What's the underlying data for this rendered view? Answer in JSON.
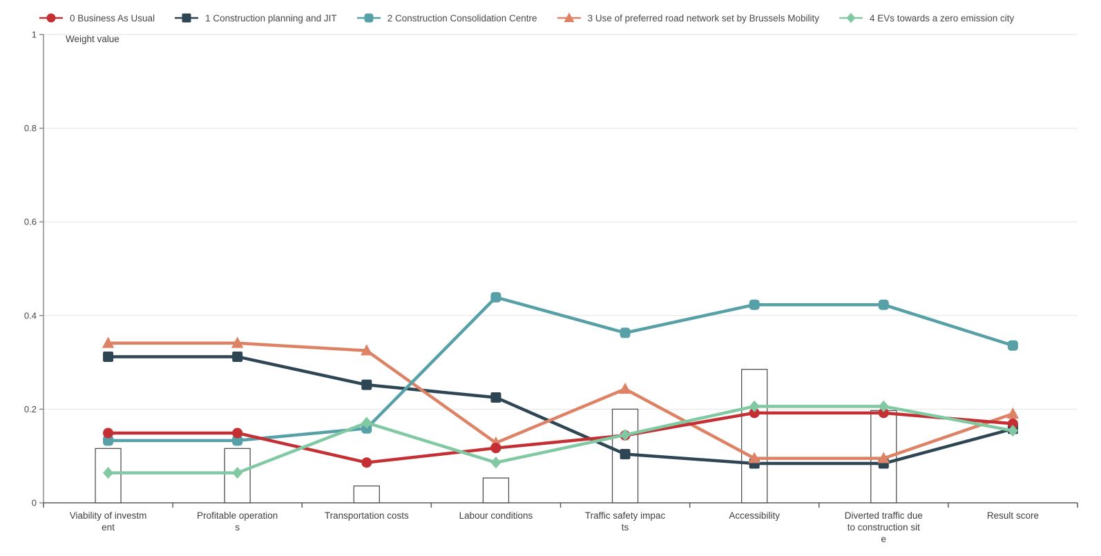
{
  "chart_data": {
    "type": "line",
    "title": "",
    "ylabel": "Weight value",
    "xlabel": "",
    "ylim": [
      0,
      1
    ],
    "yticks": [
      0,
      0.2,
      0.4,
      0.6,
      0.8,
      1
    ],
    "ytick_labels": [
      "0",
      "0.2",
      "0.4",
      "0.6",
      "0.8",
      "1"
    ],
    "grid": true,
    "legend_position": "top-left",
    "categories": [
      "Viability of investment",
      "Profitable operations",
      "Transportation costs",
      "Labour conditions",
      "Traffic safety impacts",
      "Accessibility",
      "Diverted traffic due to construction site",
      "Result score"
    ],
    "category_label_lines": [
      [
        "Viability of investm",
        "ent"
      ],
      [
        "Profitable operation",
        "s"
      ],
      [
        "Transportation costs"
      ],
      [
        "Labour conditions"
      ],
      [
        "Traffic safety impac",
        "ts"
      ],
      [
        "Accessibility"
      ],
      [
        "Diverted traffic due",
        "to construction sit",
        "e"
      ],
      [
        "Result score"
      ]
    ],
    "series": [
      {
        "name": "0 Business As Usual",
        "color": "#c42f33",
        "marker": "circle",
        "values": [
          0.149,
          0.149,
          0.086,
          0.117,
          0.144,
          0.192,
          0.192,
          0.169
        ]
      },
      {
        "name": "1 Construction planning and JIT",
        "color": "#2e4553",
        "marker": "square",
        "values": [
          0.312,
          0.312,
          0.252,
          0.225,
          0.104,
          0.084,
          0.084,
          0.158
        ]
      },
      {
        "name": "2 Construction Consolidation Centre",
        "color": "#57a0a7",
        "marker": "rounded-square",
        "values": [
          0.133,
          0.133,
          0.159,
          0.439,
          0.363,
          0.423,
          0.423,
          0.336
        ]
      },
      {
        "name": "3 Use of preferred road network set by Brussels Mobility",
        "color": "#de8265",
        "marker": "triangle",
        "values": [
          0.341,
          0.341,
          0.325,
          0.128,
          0.243,
          0.095,
          0.095,
          0.19
        ]
      },
      {
        "name": "4 EVs towards a zero emission city",
        "color": "#80c9a3",
        "marker": "diamond",
        "values": [
          0.064,
          0.064,
          0.171,
          0.086,
          0.145,
          0.206,
          0.206,
          0.154
        ]
      }
    ],
    "weight_bars": {
      "values": [
        0.116,
        0.116,
        0.036,
        0.053,
        0.2,
        0.285,
        0.197,
        null
      ],
      "fill": "#ffffff",
      "stroke": "#4f4f4f"
    },
    "draw_order": [
      1,
      3,
      2,
      0,
      4
    ],
    "grid_color": "#e3e3e3",
    "axis_color": "#8a8a8a",
    "xaxis_color": "#5a5a5a",
    "text_color": "#474747"
  }
}
